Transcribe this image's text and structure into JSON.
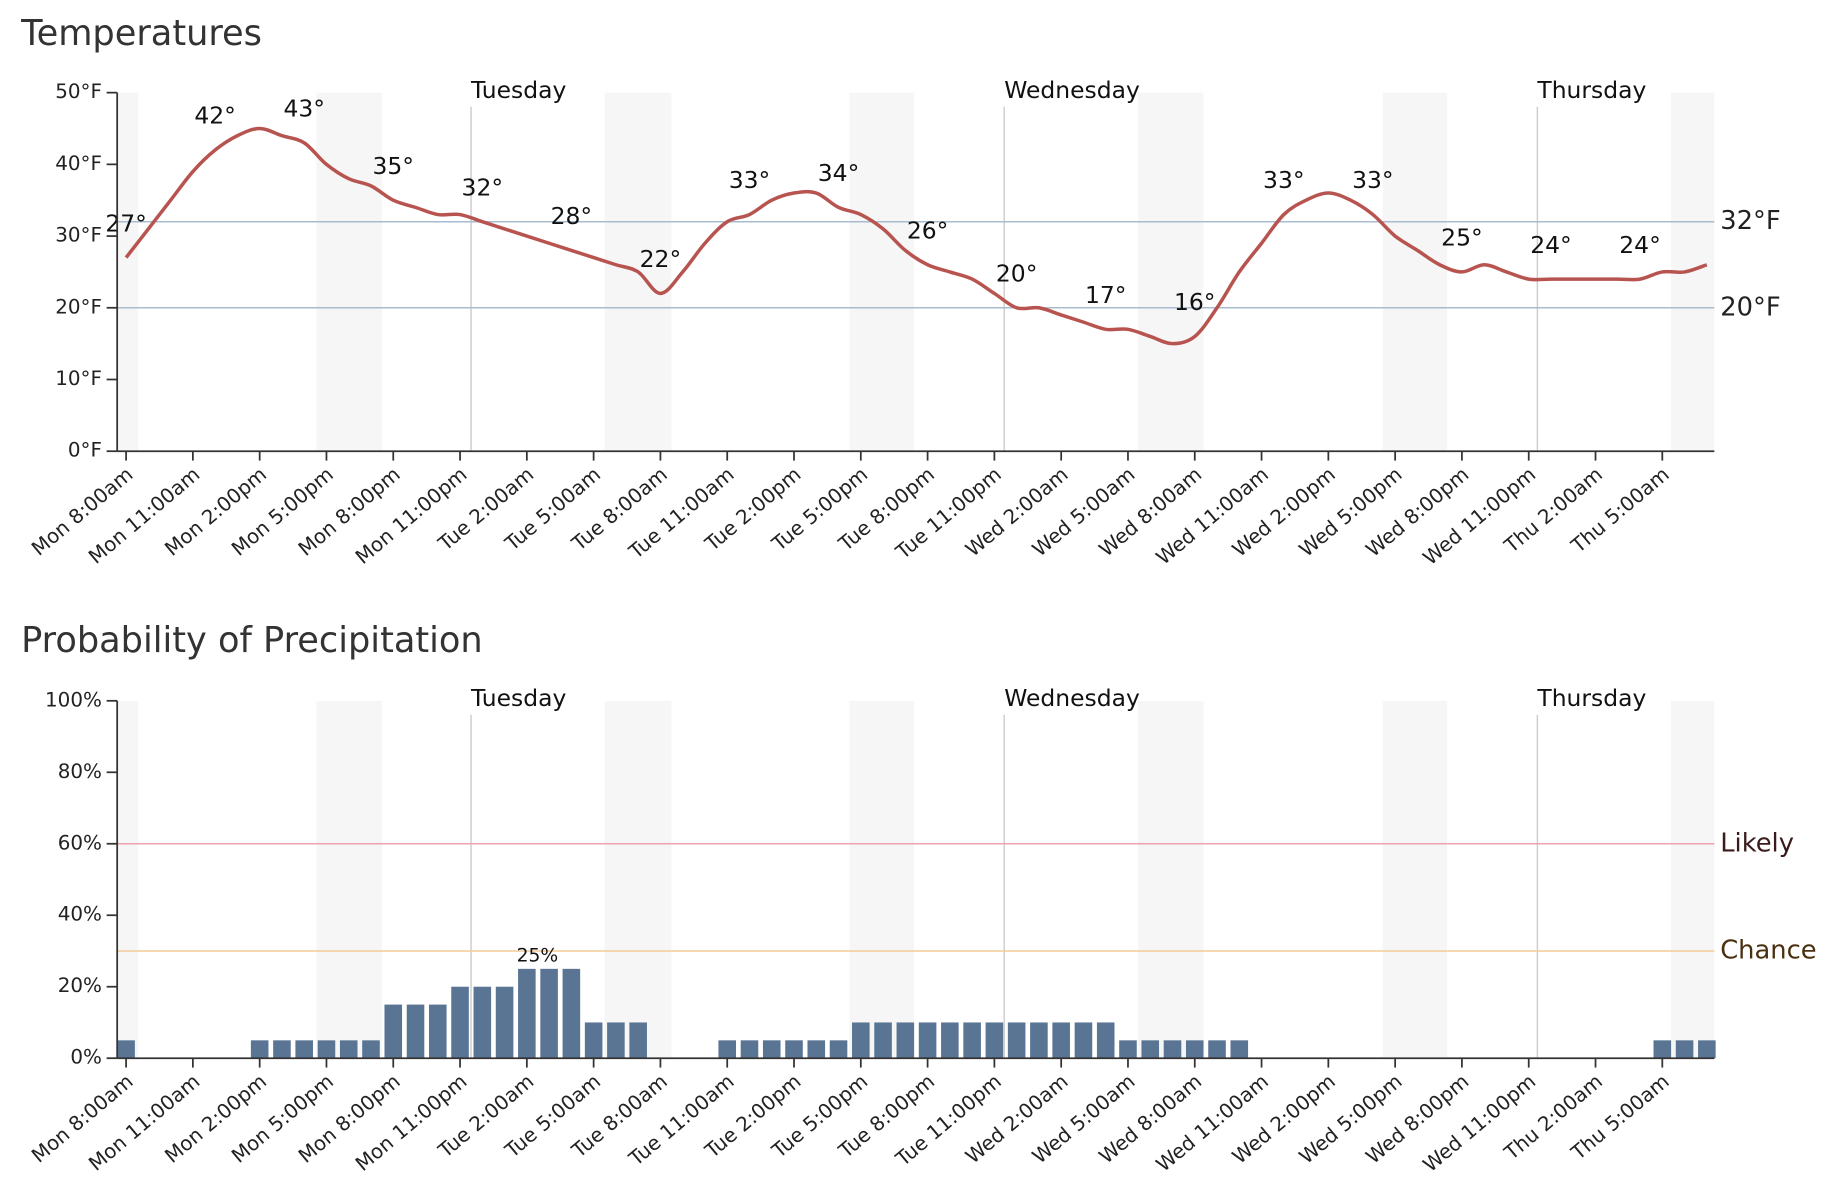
{
  "chart_data": [
    {
      "type": "line",
      "title": "Temperatures",
      "categories": [
        "Mon 8:00am",
        null,
        null,
        "Mon 11:00am",
        null,
        null,
        "Mon 2:00pm",
        null,
        null,
        "Mon 5:00pm",
        null,
        null,
        "Mon 8:00pm",
        null,
        null,
        "Mon 11:00pm",
        null,
        null,
        "Tue 2:00am",
        null,
        null,
        "Tue 5:00am",
        null,
        null,
        "Tue 8:00am",
        null,
        null,
        "Tue 11:00am",
        null,
        null,
        "Tue 2:00pm",
        null,
        null,
        "Tue 5:00pm",
        null,
        null,
        "Tue 8:00pm",
        null,
        null,
        "Tue 11:00pm",
        null,
        null,
        "Wed 2:00am",
        null,
        null,
        "Wed 5:00am",
        null,
        null,
        "Wed 8:00am",
        null,
        null,
        "Wed 11:00am",
        null,
        null,
        "Wed 2:00pm",
        null,
        null,
        "Wed 5:00pm",
        null,
        null,
        "Wed 8:00pm",
        null,
        null,
        "Wed 11:00pm",
        null,
        null,
        "Thu 2:00am",
        null,
        null,
        "Thu 5:00am",
        null,
        null
      ],
      "values": [
        27,
        31,
        35,
        39,
        42,
        44,
        45,
        44,
        43,
        40,
        38,
        37,
        35,
        34,
        33,
        33,
        32,
        31,
        30,
        29,
        28,
        27,
        26,
        25,
        22,
        25,
        29,
        32,
        33,
        35,
        36,
        36,
        34,
        33,
        31,
        28,
        26,
        25,
        24,
        22,
        20,
        20,
        19,
        18,
        17,
        17,
        16,
        15,
        16,
        20,
        25,
        29,
        33,
        35,
        36,
        35,
        33,
        30,
        28,
        26,
        25,
        26,
        25,
        24,
        24,
        24,
        24,
        24,
        24,
        25,
        25,
        26
      ],
      "value_labels": [
        "27°",
        null,
        null,
        null,
        "42°",
        null,
        null,
        null,
        "43°",
        null,
        null,
        null,
        "35°",
        null,
        null,
        null,
        "32°",
        null,
        null,
        null,
        "28°",
        null,
        null,
        null,
        "22°",
        null,
        null,
        null,
        "33°",
        null,
        null,
        null,
        "34°",
        null,
        null,
        null,
        "26°",
        null,
        null,
        null,
        "20°",
        null,
        null,
        null,
        "17°",
        null,
        null,
        null,
        "16°",
        null,
        null,
        null,
        "33°",
        null,
        null,
        null,
        "33°",
        null,
        null,
        null,
        "25°",
        null,
        null,
        null,
        "24°",
        null,
        null,
        null,
        "24°",
        null,
        null,
        null
      ],
      "color": "#b85450",
      "ylim": [
        0,
        50
      ],
      "yticks": [
        {
          "value": 0,
          "label": "0°F"
        },
        {
          "value": 10,
          "label": "10°F"
        },
        {
          "value": 20,
          "label": "20°F"
        },
        {
          "value": 30,
          "label": "30°F"
        },
        {
          "value": 40,
          "label": "40°F"
        },
        {
          "value": 50,
          "label": "50°F"
        }
      ],
      "reference_lines": [
        {
          "value": 32,
          "label": "32°F",
          "color": "#a9bccf",
          "label_color": "#222222"
        },
        {
          "value": 20,
          "label": "20°F",
          "color": "#a9bccf",
          "label_color": "#222222"
        }
      ],
      "day_labels": [
        "Tuesday",
        "Wednesday",
        "Thursday"
      ]
    },
    {
      "type": "bar",
      "title": "Probability of Precipitation",
      "categories": [
        "Mon 8:00am",
        null,
        null,
        "Mon 11:00am",
        null,
        null,
        "Mon 2:00pm",
        null,
        null,
        "Mon 5:00pm",
        null,
        null,
        "Mon 8:00pm",
        null,
        null,
        "Mon 11:00pm",
        null,
        null,
        "Tue 2:00am",
        null,
        null,
        "Tue 5:00am",
        null,
        null,
        "Tue 8:00am",
        null,
        null,
        "Tue 11:00am",
        null,
        null,
        "Tue 2:00pm",
        null,
        null,
        "Tue 5:00pm",
        null,
        null,
        "Tue 8:00pm",
        null,
        null,
        "Tue 11:00pm",
        null,
        null,
        "Wed 2:00am",
        null,
        null,
        "Wed 5:00am",
        null,
        null,
        "Wed 8:00am",
        null,
        null,
        "Wed 11:00am",
        null,
        null,
        "Wed 2:00pm",
        null,
        null,
        "Wed 5:00pm",
        null,
        null,
        "Wed 8:00pm",
        null,
        null,
        "Wed 11:00pm",
        null,
        null,
        "Thu 2:00am",
        null,
        null,
        "Thu 5:00am",
        null,
        null
      ],
      "values": [
        5,
        0,
        0,
        0,
        0,
        0,
        5,
        5,
        5,
        5,
        5,
        5,
        15,
        15,
        15,
        20,
        20,
        20,
        25,
        25,
        25,
        10,
        10,
        10,
        0,
        0,
        0,
        5,
        5,
        5,
        5,
        5,
        5,
        10,
        10,
        10,
        10,
        10,
        10,
        10,
        10,
        10,
        10,
        10,
        10,
        5,
        5,
        5,
        5,
        5,
        5,
        0,
        0,
        0,
        0,
        0,
        0,
        0,
        0,
        0,
        0,
        0,
        0,
        0,
        0,
        0,
        0,
        0,
        0,
        5,
        5,
        5
      ],
      "value_labels": [
        null,
        null,
        null,
        null,
        null,
        null,
        null,
        null,
        null,
        null,
        null,
        null,
        null,
        null,
        null,
        null,
        null,
        null,
        null,
        "25%",
        null,
        null,
        null,
        null,
        null,
        null,
        null,
        null,
        null,
        null,
        null,
        null,
        null,
        null,
        null,
        null,
        null,
        null,
        null,
        null,
        null,
        null,
        null,
        null,
        null,
        null,
        null,
        null,
        null,
        null,
        null,
        null,
        null,
        null,
        null,
        null,
        null,
        null,
        null,
        null,
        null,
        null,
        null,
        null,
        null,
        null,
        null,
        null,
        null,
        null,
        null,
        null
      ],
      "color": "#5a7594",
      "ylim": [
        0,
        100
      ],
      "yticks": [
        {
          "value": 0,
          "label": "0%"
        },
        {
          "value": 20,
          "label": "20%"
        },
        {
          "value": 40,
          "label": "40%"
        },
        {
          "value": 60,
          "label": "60%"
        },
        {
          "value": 80,
          "label": "80%"
        },
        {
          "value": 100,
          "label": "100%"
        }
      ],
      "reference_lines": [
        {
          "value": 60,
          "label": "Likely",
          "color": "#f0a0ad",
          "label_color": "#3a1a1a"
        },
        {
          "value": 30,
          "label": "Chance",
          "color": "#f2cc9a",
          "label_color": "#4a3010"
        }
      ],
      "day_labels": [
        "Tuesday",
        "Wednesday",
        "Thursday"
      ]
    }
  ]
}
